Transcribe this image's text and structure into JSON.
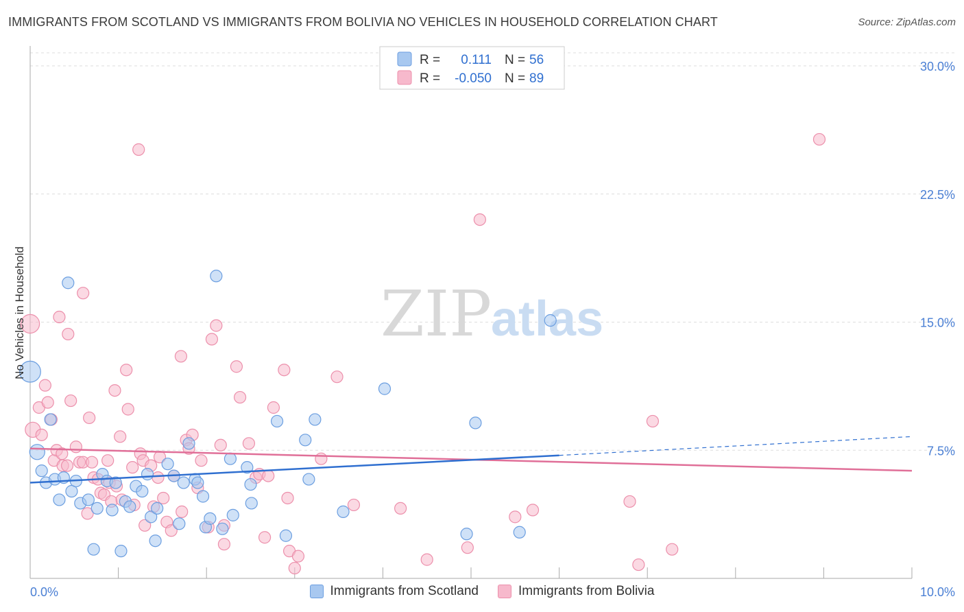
{
  "header": {
    "title": "IMMIGRANTS FROM SCOTLAND VS IMMIGRANTS FROM BOLIVIA NO VEHICLES IN HOUSEHOLD CORRELATION CHART",
    "source": "Source: ZipAtlas.com"
  },
  "colors": {
    "scotland_fill": "#a8c8f0",
    "scotland_stroke": "#6b9ee0",
    "scotland_line": "#2f6fd0",
    "bolivia_fill": "#f7b9cc",
    "bolivia_stroke": "#ec8fab",
    "bolivia_line": "#e06f98",
    "grid": "#dddddd",
    "tick_label": "#4a7fd4"
  },
  "stats_legend": {
    "row1": {
      "r_label": "R =",
      "r_value": "0.111",
      "n_label": "N =",
      "n_value": "56"
    },
    "row2": {
      "r_label": "R =",
      "r_value": "-0.050",
      "n_label": "N =",
      "n_value": "89"
    }
  },
  "watermark": {
    "zip": "ZIP",
    "atlas": "atlas"
  },
  "chart_data": {
    "type": "scatter",
    "title": "IMMIGRANTS FROM SCOTLAND VS IMMIGRANTS FROM BOLIVIA NO VEHICLES IN HOUSEHOLD CORRELATION CHART",
    "xlabel": "",
    "ylabel": "No Vehicles in Household",
    "xlim": [
      0,
      10
    ],
    "ylim": [
      0,
      30
    ],
    "x_tick_labels": [
      "0.0%",
      "10.0%"
    ],
    "y_ticks": [
      7.5,
      15.0,
      22.5,
      30.0
    ],
    "y_tick_labels": [
      "7.5%",
      "15.0%",
      "22.5%",
      "30.0%"
    ],
    "grid": true,
    "legend_position": "bottom",
    "series": [
      {
        "name": "Immigrants from Scotland",
        "r": 0.111,
        "n": 56,
        "trend": {
          "x0": 0,
          "y0": 5.6,
          "x1": 6.0,
          "y1": 7.2,
          "dashed_to_x": 10.0,
          "dashed_to_y": 8.3
        },
        "points": [
          [
            0.0,
            12.1,
            1.8
          ],
          [
            0.08,
            7.4,
            1.3
          ],
          [
            0.13,
            6.3,
            1.0
          ],
          [
            0.18,
            5.6,
            1.0
          ],
          [
            0.23,
            9.3,
            1.0
          ],
          [
            0.28,
            5.8,
            1.0
          ],
          [
            0.33,
            4.6,
            1.0
          ],
          [
            0.38,
            5.9,
            1.0
          ],
          [
            0.43,
            17.3,
            1.0
          ],
          [
            0.47,
            5.1,
            1.0
          ],
          [
            0.52,
            5.7,
            1.0
          ],
          [
            0.57,
            4.4,
            1.0
          ],
          [
            0.66,
            4.6,
            1.0
          ],
          [
            0.72,
            1.7,
            1.0
          ],
          [
            0.76,
            4.1,
            1.0
          ],
          [
            0.82,
            6.1,
            1.0
          ],
          [
            0.87,
            5.7,
            1.0
          ],
          [
            0.93,
            4.0,
            1.0
          ],
          [
            0.97,
            5.6,
            1.0
          ],
          [
            1.03,
            1.6,
            1.0
          ],
          [
            1.08,
            4.5,
            1.0
          ],
          [
            1.13,
            4.2,
            1.0
          ],
          [
            1.2,
            5.4,
            1.0
          ],
          [
            1.27,
            5.1,
            1.0
          ],
          [
            1.33,
            6.1,
            1.0
          ],
          [
            1.37,
            3.6,
            1.0
          ],
          [
            1.42,
            2.2,
            1.0
          ],
          [
            1.44,
            4.1,
            1.0
          ],
          [
            1.56,
            6.7,
            1.0
          ],
          [
            1.63,
            6.0,
            1.0
          ],
          [
            1.69,
            3.2,
            1.0
          ],
          [
            1.74,
            5.6,
            1.0
          ],
          [
            1.8,
            7.9,
            1.0
          ],
          [
            1.87,
            5.8,
            1.0
          ],
          [
            1.9,
            5.6,
            1.0
          ],
          [
            1.96,
            4.8,
            1.0
          ],
          [
            1.99,
            3.0,
            1.0
          ],
          [
            2.04,
            3.5,
            1.0
          ],
          [
            2.11,
            17.7,
            1.0
          ],
          [
            2.18,
            2.9,
            1.0
          ],
          [
            2.27,
            7.0,
            1.0
          ],
          [
            2.3,
            3.7,
            1.0
          ],
          [
            2.46,
            6.5,
            1.0
          ],
          [
            2.5,
            5.5,
            1.0
          ],
          [
            2.51,
            4.4,
            1.0
          ],
          [
            2.8,
            9.2,
            1.0
          ],
          [
            2.9,
            2.5,
            1.0
          ],
          [
            3.12,
            8.1,
            1.0
          ],
          [
            3.16,
            5.8,
            1.0
          ],
          [
            3.23,
            9.3,
            1.0
          ],
          [
            3.55,
            3.9,
            1.0
          ],
          [
            4.02,
            11.1,
            1.0
          ],
          [
            4.95,
            2.6,
            1.0
          ],
          [
            5.05,
            9.1,
            1.0
          ],
          [
            5.55,
            2.7,
            1.0
          ],
          [
            5.9,
            15.1,
            1.0
          ]
        ]
      },
      {
        "name": "Immigrants from Bolivia",
        "r": -0.05,
        "n": 89,
        "trend": {
          "x0": 0,
          "y0": 7.6,
          "x1": 10.0,
          "y1": 6.3
        },
        "points": [
          [
            0.0,
            14.9,
            1.6
          ],
          [
            0.03,
            8.7,
            1.3
          ],
          [
            0.1,
            10.0,
            1.0
          ],
          [
            0.13,
            8.4,
            1.0
          ],
          [
            0.17,
            11.3,
            1.0
          ],
          [
            0.2,
            10.3,
            1.0
          ],
          [
            0.24,
            9.3,
            1.0
          ],
          [
            0.27,
            6.9,
            1.0
          ],
          [
            0.3,
            7.5,
            1.0
          ],
          [
            0.33,
            15.3,
            1.0
          ],
          [
            0.37,
            6.6,
            1.0
          ],
          [
            0.42,
            6.6,
            1.0
          ],
          [
            0.43,
            14.3,
            1.0
          ],
          [
            0.46,
            10.4,
            1.0
          ],
          [
            0.52,
            7.7,
            1.0
          ],
          [
            0.56,
            6.8,
            1.0
          ],
          [
            0.6,
            6.8,
            1.0
          ],
          [
            0.6,
            16.7,
            1.0
          ],
          [
            0.65,
            3.8,
            1.0
          ],
          [
            0.67,
            9.4,
            1.0
          ],
          [
            0.72,
            5.9,
            1.0
          ],
          [
            0.77,
            5.8,
            1.0
          ],
          [
            0.8,
            5.0,
            1.0
          ],
          [
            0.84,
            4.9,
            1.0
          ],
          [
            0.88,
            6.9,
            1.0
          ],
          [
            0.9,
            5.6,
            1.0
          ],
          [
            0.92,
            4.5,
            1.0
          ],
          [
            0.96,
            11.0,
            1.0
          ],
          [
            0.98,
            5.4,
            1.0
          ],
          [
            1.02,
            8.3,
            1.0
          ],
          [
            1.04,
            4.6,
            1.0
          ],
          [
            1.09,
            12.2,
            1.0
          ],
          [
            1.11,
            9.9,
            1.0
          ],
          [
            1.16,
            6.5,
            1.0
          ],
          [
            1.18,
            4.3,
            1.0
          ],
          [
            1.23,
            25.1,
            1.0
          ],
          [
            1.25,
            7.3,
            1.0
          ],
          [
            1.28,
            6.9,
            1.0
          ],
          [
            1.3,
            3.1,
            1.0
          ],
          [
            1.37,
            6.6,
            1.0
          ],
          [
            1.4,
            4.2,
            1.0
          ],
          [
            1.45,
            5.9,
            1.0
          ],
          [
            1.47,
            7.1,
            1.0
          ],
          [
            1.51,
            4.7,
            1.0
          ],
          [
            1.55,
            3.3,
            1.0
          ],
          [
            1.6,
            2.8,
            1.0
          ],
          [
            1.63,
            6.0,
            1.0
          ],
          [
            1.71,
            13.0,
            1.0
          ],
          [
            1.72,
            3.9,
            1.0
          ],
          [
            1.77,
            8.1,
            1.0
          ],
          [
            1.8,
            7.6,
            1.0
          ],
          [
            1.84,
            8.4,
            1.0
          ],
          [
            1.9,
            5.3,
            1.0
          ],
          [
            1.94,
            6.9,
            1.0
          ],
          [
            2.02,
            3.0,
            1.0
          ],
          [
            2.06,
            14.0,
            1.0
          ],
          [
            2.11,
            14.8,
            1.0
          ],
          [
            2.16,
            7.8,
            1.0
          ],
          [
            2.2,
            2.0,
            1.0
          ],
          [
            2.2,
            3.1,
            1.0
          ],
          [
            2.34,
            12.4,
            1.0
          ],
          [
            2.38,
            10.6,
            1.0
          ],
          [
            2.48,
            7.9,
            1.0
          ],
          [
            2.56,
            5.9,
            1.0
          ],
          [
            2.6,
            6.1,
            1.0
          ],
          [
            2.66,
            2.4,
            1.0
          ],
          [
            2.7,
            6.0,
            1.0
          ],
          [
            2.76,
            10.0,
            1.0
          ],
          [
            2.88,
            12.2,
            1.0
          ],
          [
            2.92,
            4.7,
            1.0
          ],
          [
            2.94,
            1.6,
            1.0
          ],
          [
            3.0,
            0.6,
            1.0
          ],
          [
            3.04,
            1.3,
            1.0
          ],
          [
            3.3,
            7.0,
            1.0
          ],
          [
            3.48,
            11.8,
            1.0
          ],
          [
            3.67,
            4.3,
            1.0
          ],
          [
            4.2,
            4.1,
            1.0
          ],
          [
            4.5,
            1.1,
            1.0
          ],
          [
            4.96,
            1.8,
            1.0
          ],
          [
            5.1,
            21.0,
            1.0
          ],
          [
            5.5,
            3.6,
            1.0
          ],
          [
            5.7,
            4.0,
            1.0
          ],
          [
            6.8,
            4.5,
            1.0
          ],
          [
            6.9,
            0.8,
            1.0
          ],
          [
            7.06,
            9.2,
            1.0
          ],
          [
            7.28,
            1.7,
            1.0
          ],
          [
            8.95,
            25.7,
            1.0
          ],
          [
            0.36,
            7.3,
            1.0
          ],
          [
            0.7,
            6.8,
            1.0
          ]
        ]
      }
    ]
  }
}
